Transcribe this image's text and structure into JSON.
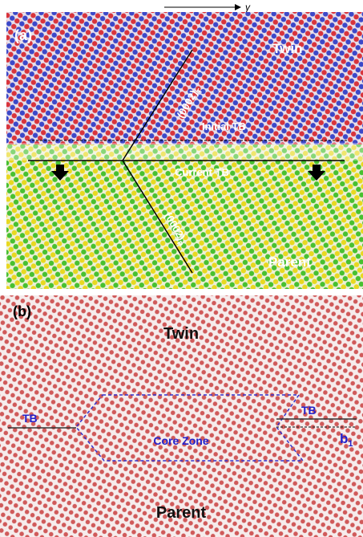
{
  "header": {
    "axis_label": "γ"
  },
  "panel_a": {
    "label": "(a)",
    "twin": "Twin",
    "plane_twin": {
      "text": "(0002)",
      "sub": "T"
    },
    "initial_tb": "Initial TB",
    "current_tb": "Current TB",
    "plane_parent": {
      "text": "(0002)",
      "sub": "P"
    },
    "parent": "Parent"
  },
  "panel_b": {
    "label": "(b)",
    "twin": "Twin",
    "tb_left": "TB",
    "tb_right": "TB",
    "core_zone": "Core Zone",
    "burgers": {
      "text": "b",
      "sub": "1"
    },
    "parent": "Parent"
  }
}
